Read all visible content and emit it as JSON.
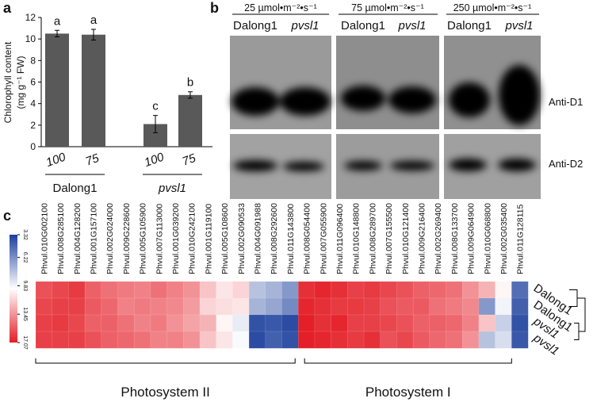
{
  "chart_data": [
    {
      "type": "bar",
      "panel": "a",
      "y_label": "Chlorophyll content",
      "y_label_unit": "(mg g⁻¹ FW)",
      "categories": [
        "100",
        "75",
        "100",
        "75"
      ],
      "groups": [
        "Dalong1",
        "pvsl1"
      ],
      "values": [
        10.5,
        10.4,
        2.1,
        4.8
      ],
      "errors": [
        0.3,
        0.5,
        0.8,
        0.3
      ],
      "significance": [
        "a",
        "a",
        "c",
        "b"
      ],
      "color": "#595959",
      "ylim": [
        0,
        12
      ],
      "yticks": [
        0,
        2,
        4,
        6,
        8,
        10,
        12
      ]
    },
    {
      "type": "heatmap",
      "panel": "c",
      "columns": [
        "Phvul.010G002100",
        "Phvul.008G285100",
        "Phvul.004G128200",
        "Phvul.001G157100",
        "Phvul.002G024000",
        "Phvul.009G228600",
        "Phvul.005G105900",
        "Phvul.007G113000",
        "Phvul.001G039200",
        "Phvul.010G242100",
        "Phvul.001G119100",
        "Phvul.005G108600",
        "Phvul.002G090533",
        "Phvul.004G091988",
        "Phvul.008G292600",
        "Phvul.011G143800",
        "Phvul.008G054400",
        "Phvul.007G055900",
        "Phvul.011G096400",
        "Phvul.010G148800",
        "Phvul.008G289700",
        "Phvul.007G155500",
        "Phvul.010G121400",
        "Phvul.009G216400",
        "Phvul.002G269400",
        "Phvul.008G133700",
        "Phvul.009G064900",
        "Phvul.010G068800",
        "Phvul.002G035400",
        "Phvul.011G128115"
      ],
      "rows": [
        "Dalong1",
        "Dalong1",
        "pvsl1",
        "pvsl1"
      ],
      "values": [
        [
          15.5,
          15.8,
          16.2,
          15.0,
          14.5,
          14.2,
          14.0,
          14.5,
          14.0,
          13.5,
          12.0,
          11.0,
          11.5,
          8.0,
          7.5,
          6.5,
          16.5,
          16.8,
          16.5,
          16.0,
          16.2,
          15.8,
          15.5,
          15.0,
          14.8,
          14.5,
          13.5,
          12.5,
          10.5,
          5.0
        ],
        [
          15.8,
          16.0,
          16.0,
          15.2,
          14.8,
          14.0,
          14.2,
          14.0,
          13.8,
          13.2,
          11.5,
          11.2,
          11.0,
          7.5,
          7.0,
          6.0,
          16.8,
          16.5,
          16.2,
          16.2,
          16.0,
          15.5,
          15.2,
          15.2,
          14.5,
          14.2,
          13.8,
          6.5,
          9.8,
          4.5
        ],
        [
          16.0,
          16.2,
          15.8,
          15.0,
          15.0,
          14.5,
          14.0,
          14.2,
          13.5,
          13.0,
          12.5,
          10.5,
          9.5,
          4.0,
          4.2,
          3.8,
          17.0,
          16.5,
          16.8,
          16.0,
          16.0,
          15.8,
          15.5,
          15.0,
          15.0,
          14.8,
          14.0,
          12.0,
          8.5,
          4.0
        ],
        [
          16.0,
          16.0,
          16.0,
          15.5,
          15.0,
          14.8,
          14.5,
          14.0,
          14.0,
          13.5,
          12.0,
          11.0,
          10.0,
          3.8,
          4.5,
          4.0,
          17.0,
          16.8,
          16.5,
          16.2,
          16.5,
          15.5,
          15.8,
          15.2,
          14.8,
          14.5,
          13.5,
          8.0,
          9.0,
          4.2
        ]
      ],
      "clim": [
        3.32,
        17.07
      ],
      "colorbar_ticks": [
        3.32,
        6.22,
        9.83,
        13.45,
        17.07
      ],
      "colors": [
        "#1c3f9c",
        "#ffffff",
        "#e41d26"
      ],
      "column_groups": [
        "Photosystem II",
        "Photosystem I"
      ]
    }
  ],
  "panel_b": {
    "panel": "b",
    "conditions": [
      {
        "light": "25 µmol•m⁻²•s⁻¹",
        "lanes": [
          "Dalong1",
          "pvsl1"
        ]
      },
      {
        "light": "75 µmol•m⁻²•s⁻¹",
        "lanes": [
          "Dalong1",
          "pvsl1"
        ]
      },
      {
        "light": "250 µmol•m⁻²•s⁻¹",
        "lanes": [
          "Dalong1",
          "pvsl1"
        ]
      }
    ],
    "antibodies": [
      "Anti-D1",
      "Anti-D2"
    ]
  }
}
